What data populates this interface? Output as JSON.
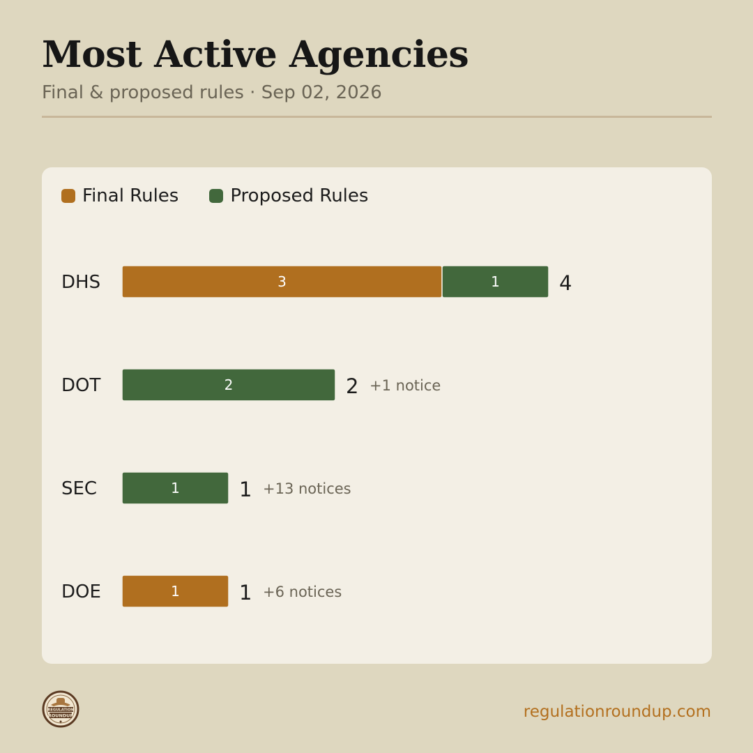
{
  "header": {
    "title": "Most Active Agencies",
    "subtitle": "Final & proposed rules · Sep 02, 2026"
  },
  "colors": {
    "final": "#b06f1f",
    "proposed": "#42683c",
    "background": "#ded7bf",
    "card": "#f3efe5",
    "accent": "#b3701f"
  },
  "chart_data": {
    "type": "bar",
    "orientation": "horizontal",
    "stacked": true,
    "categories": [
      "DHS",
      "DOT",
      "SEC",
      "DOE"
    ],
    "series": [
      {
        "name": "Final Rules",
        "values": [
          3,
          0,
          0,
          1
        ]
      },
      {
        "name": "Proposed Rules",
        "values": [
          1,
          2,
          1,
          0
        ]
      }
    ],
    "totals": [
      4,
      2,
      1,
      1
    ],
    "annotations": [
      "",
      "+1 notice",
      "+13 notices",
      "+6 notices"
    ],
    "legend": "top-left",
    "grid": false,
    "xlim": [
      0,
      6
    ]
  },
  "footer": {
    "url": "regulationroundup.com",
    "logo_text": [
      "REGULATION",
      "ROUNDUP"
    ]
  }
}
